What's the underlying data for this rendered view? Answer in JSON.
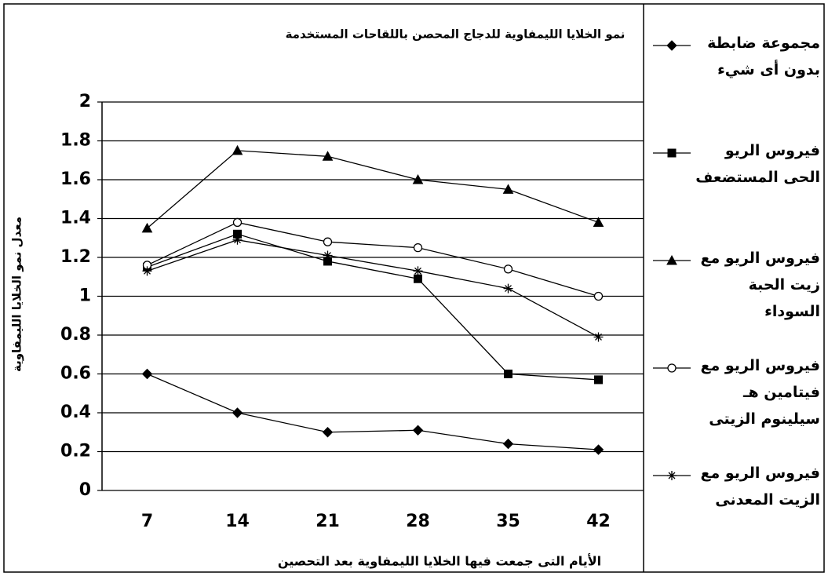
{
  "chart_data": {
    "type": "line",
    "title": "نمو الخلايا الليمفاوية للدجاج المحصن باللقاحات المستخدمة",
    "y_label": "معدل نمو الخلايا الليمفاوية",
    "x_label": "الأيام التى جمعت فيها الخلايا الليمفاوية بعد التحصين",
    "categories": [
      "7",
      "14",
      "21",
      "28",
      "35",
      "42"
    ],
    "series": [
      {
        "name": "مجموعة ضابطة بدون أى شيء",
        "color": "#000000",
        "marker": "diamond",
        "values": [
          0.6,
          0.4,
          0.3,
          0.31,
          0.24,
          0.21
        ]
      },
      {
        "name": "فيروس الريو الحى المستضعف",
        "color": "#000000",
        "marker": "square",
        "values": [
          1.15,
          1.32,
          1.18,
          1.09,
          0.6,
          0.57
        ]
      },
      {
        "name": "فيروس الريو مع زيت الحبة السوداء",
        "color": "#000000",
        "marker": "triangle",
        "values": [
          1.35,
          1.75,
          1.72,
          1.6,
          1.55,
          1.38
        ]
      },
      {
        "name": "فيروس الريو مع فيتامين هـ سيلينوم الزيتى",
        "color": "#000000",
        "marker": "circle",
        "values": [
          1.16,
          1.38,
          1.28,
          1.25,
          1.14,
          1.0
        ]
      },
      {
        "name": "فيروس الريو مع الزيت المعدنى",
        "color": "#000000",
        "marker": "star",
        "values": [
          1.13,
          1.29,
          1.21,
          1.13,
          1.04,
          0.79
        ]
      }
    ],
    "ylim": [
      0,
      2
    ],
    "yticks": [
      0,
      0.2,
      0.4,
      0.6,
      0.8,
      1,
      1.2,
      1.4,
      1.6,
      1.8,
      2
    ],
    "grid": true
  }
}
